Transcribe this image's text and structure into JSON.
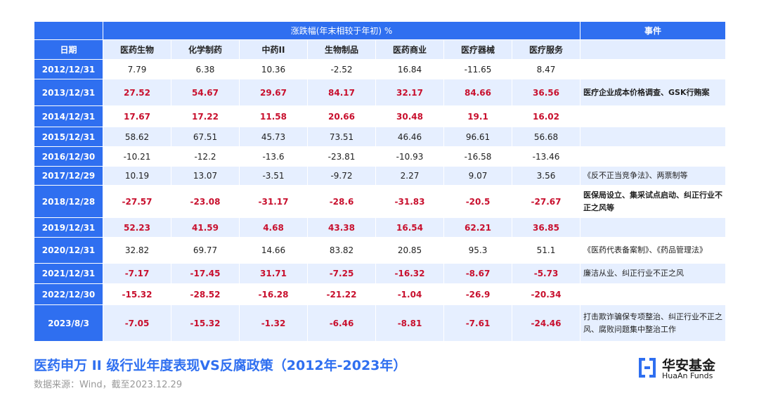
{
  "table": {
    "group_header": "涨跌幅(年末相较于年初) %",
    "event_header": "事件",
    "columns": [
      "日期",
      "医药生物",
      "化学制药",
      "中药II",
      "生物制品",
      "医药商业",
      "医疗器械",
      "医疗服务"
    ],
    "rows": [
      {
        "date": "2012/12/31",
        "values": [
          7.79,
          6.38,
          10.36,
          -2.52,
          16.84,
          -11.65,
          8.47
        ],
        "highlight": false
      },
      {
        "date": "2013/12/31",
        "values": [
          27.52,
          54.67,
          29.67,
          84.17,
          32.17,
          84.66,
          36.56
        ],
        "highlight": true,
        "event": "医疗企业成本价格调查、GSK行贿案",
        "event_bold": true
      },
      {
        "date": "2014/12/31",
        "values": [
          17.67,
          17.22,
          11.58,
          20.66,
          30.48,
          19.1,
          16.02
        ],
        "highlight": true
      },
      {
        "date": "2015/12/31",
        "values": [
          58.62,
          67.51,
          45.73,
          73.51,
          46.46,
          96.61,
          56.68
        ],
        "highlight": false
      },
      {
        "date": "2016/12/30",
        "values": [
          -10.21,
          -12.2,
          -13.6,
          -23.81,
          -10.93,
          -16.58,
          -13.46
        ],
        "highlight": false
      },
      {
        "date": "2017/12/29",
        "values": [
          10.19,
          13.07,
          -3.51,
          -9.72,
          2.27,
          9.07,
          3.56
        ],
        "highlight": false,
        "event": "《反不正当竞争法》、两票制等",
        "event_bold": false
      },
      {
        "date": "2018/12/28",
        "values": [
          -27.57,
          -23.08,
          -31.17,
          -28.6,
          -31.83,
          -20.5,
          -27.67
        ],
        "highlight": true,
        "event": "医保局设立、集采试点启动、纠正行业不正之风等",
        "event_bold": true
      },
      {
        "date": "2019/12/31",
        "values": [
          52.23,
          41.59,
          4.68,
          43.38,
          16.54,
          62.21,
          36.85
        ],
        "highlight": true
      },
      {
        "date": "2020/12/31",
        "values": [
          32.82,
          69.77,
          14.66,
          83.82,
          20.85,
          95.3,
          51.1
        ],
        "highlight": false,
        "event": "《医药代表备案制》、《药品管理法》",
        "event_bold": false
      },
      {
        "date": "2021/12/31",
        "values": [
          -7.17,
          -17.45,
          31.71,
          -7.25,
          -16.32,
          -8.67,
          -5.73
        ],
        "highlight": true,
        "event": "廉洁从业、纠正行业不正之风",
        "event_bold": false
      },
      {
        "date": "2022/12/30",
        "values": [
          -15.32,
          -28.52,
          -16.28,
          -21.22,
          -1.04,
          -26.9,
          -20.34
        ],
        "highlight": true
      },
      {
        "date": "2023/8/3",
        "values": [
          -7.05,
          -15.32,
          -1.32,
          -6.46,
          -8.81,
          -7.61,
          -24.46
        ],
        "highlight": true,
        "event": "打击欺诈骗保专项整治、纠正行业不正之风、腐败问题集中整治工作",
        "event_bold": false
      }
    ]
  },
  "footer": {
    "title": "医药申万 II 级行业年度表现VS反腐政策（2012年-2023年）",
    "source": "数据来源：Wind，截至2023.12.29",
    "logo_cn": "华安基金",
    "logo_en": "HuaAn Funds"
  }
}
